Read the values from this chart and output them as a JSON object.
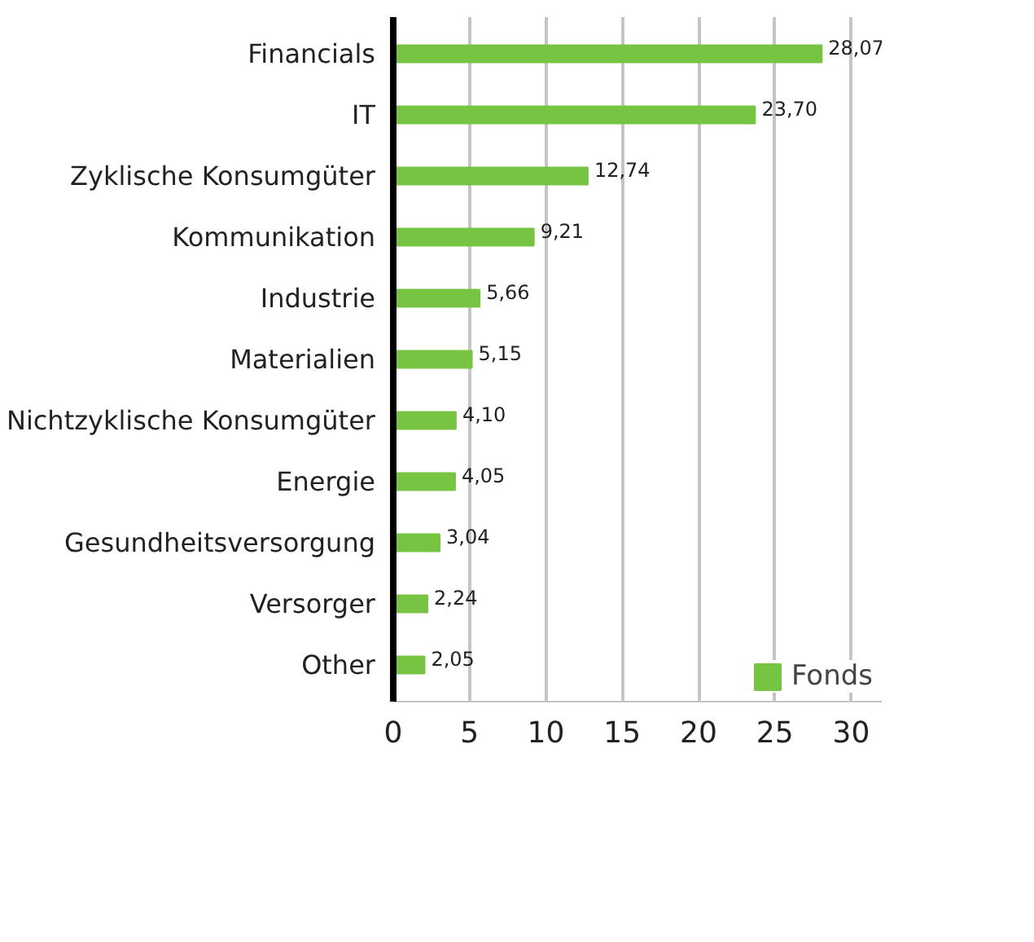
{
  "chart_data": {
    "type": "bar",
    "orientation": "horizontal",
    "categories": [
      "Financials",
      "IT",
      "Zyklische Konsumgüter",
      "Kommunikation",
      "Industrie",
      "Materialien",
      "Nichtzyklische Konsumgüter",
      "Energie",
      "Gesundheitsversorgung",
      "Versorger",
      "Other"
    ],
    "series": [
      {
        "name": "Fonds",
        "color": "#76c442",
        "values": [
          28.07,
          23.7,
          12.74,
          9.21,
          5.66,
          5.15,
          4.1,
          4.05,
          3.04,
          2.24,
          2.05
        ],
        "value_labels": [
          "28,07",
          "23,70",
          "12,74",
          "9,21",
          "5,66",
          "5,15",
          "4,10",
          "4,05",
          "3,04",
          "2,24",
          "2,05"
        ]
      }
    ],
    "xlim": [
      0,
      32
    ],
    "xticks": [
      0,
      5,
      10,
      15,
      20,
      25,
      30
    ],
    "grid": "x",
    "legend": "bottom right"
  }
}
